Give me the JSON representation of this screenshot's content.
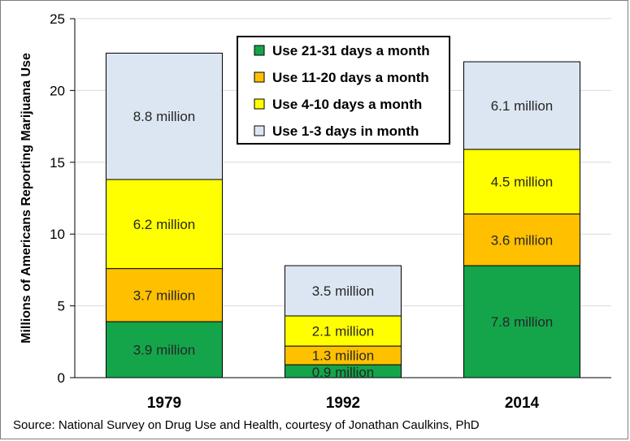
{
  "chart_data": {
    "type": "bar",
    "stacked": true,
    "categories": [
      "1979",
      "1992",
      "2014"
    ],
    "ylabel": "Millions of Americans Reporting Marijuana Use",
    "xlabel": "",
    "ylim": [
      0,
      25
    ],
    "yticks": [
      0,
      5,
      10,
      15,
      20,
      25
    ],
    "grid": true,
    "legend_position": "top-center",
    "series": [
      {
        "name": "Use 21-31 days a month",
        "color": "#14a54b",
        "values": [
          3.9,
          0.9,
          7.8
        ],
        "labels": [
          "3.9 million",
          "0.9 million",
          "7.8 million"
        ]
      },
      {
        "name": "Use 11-20 days a month",
        "color": "#ffc000",
        "values": [
          3.7,
          1.3,
          3.6
        ],
        "labels": [
          "3.7 million",
          "1.3 million",
          "3.6 million"
        ]
      },
      {
        "name": "Use 4-10 days a month",
        "color": "#ffff00",
        "values": [
          6.2,
          2.1,
          4.5
        ],
        "labels": [
          "6.2 million",
          "2.1 million",
          "4.5 million"
        ]
      },
      {
        "name": "Use 1-3 days in month",
        "color": "#dce6f2",
        "values": [
          8.8,
          3.5,
          6.1
        ],
        "labels": [
          "8.8 million",
          "3.5 million",
          "6.1 million"
        ]
      }
    ],
    "legend_order": [
      0,
      1,
      2,
      3
    ]
  },
  "source": "Source: National Survey on Drug Use and Health, courtesy of Jonathan Caulkins, PhD"
}
